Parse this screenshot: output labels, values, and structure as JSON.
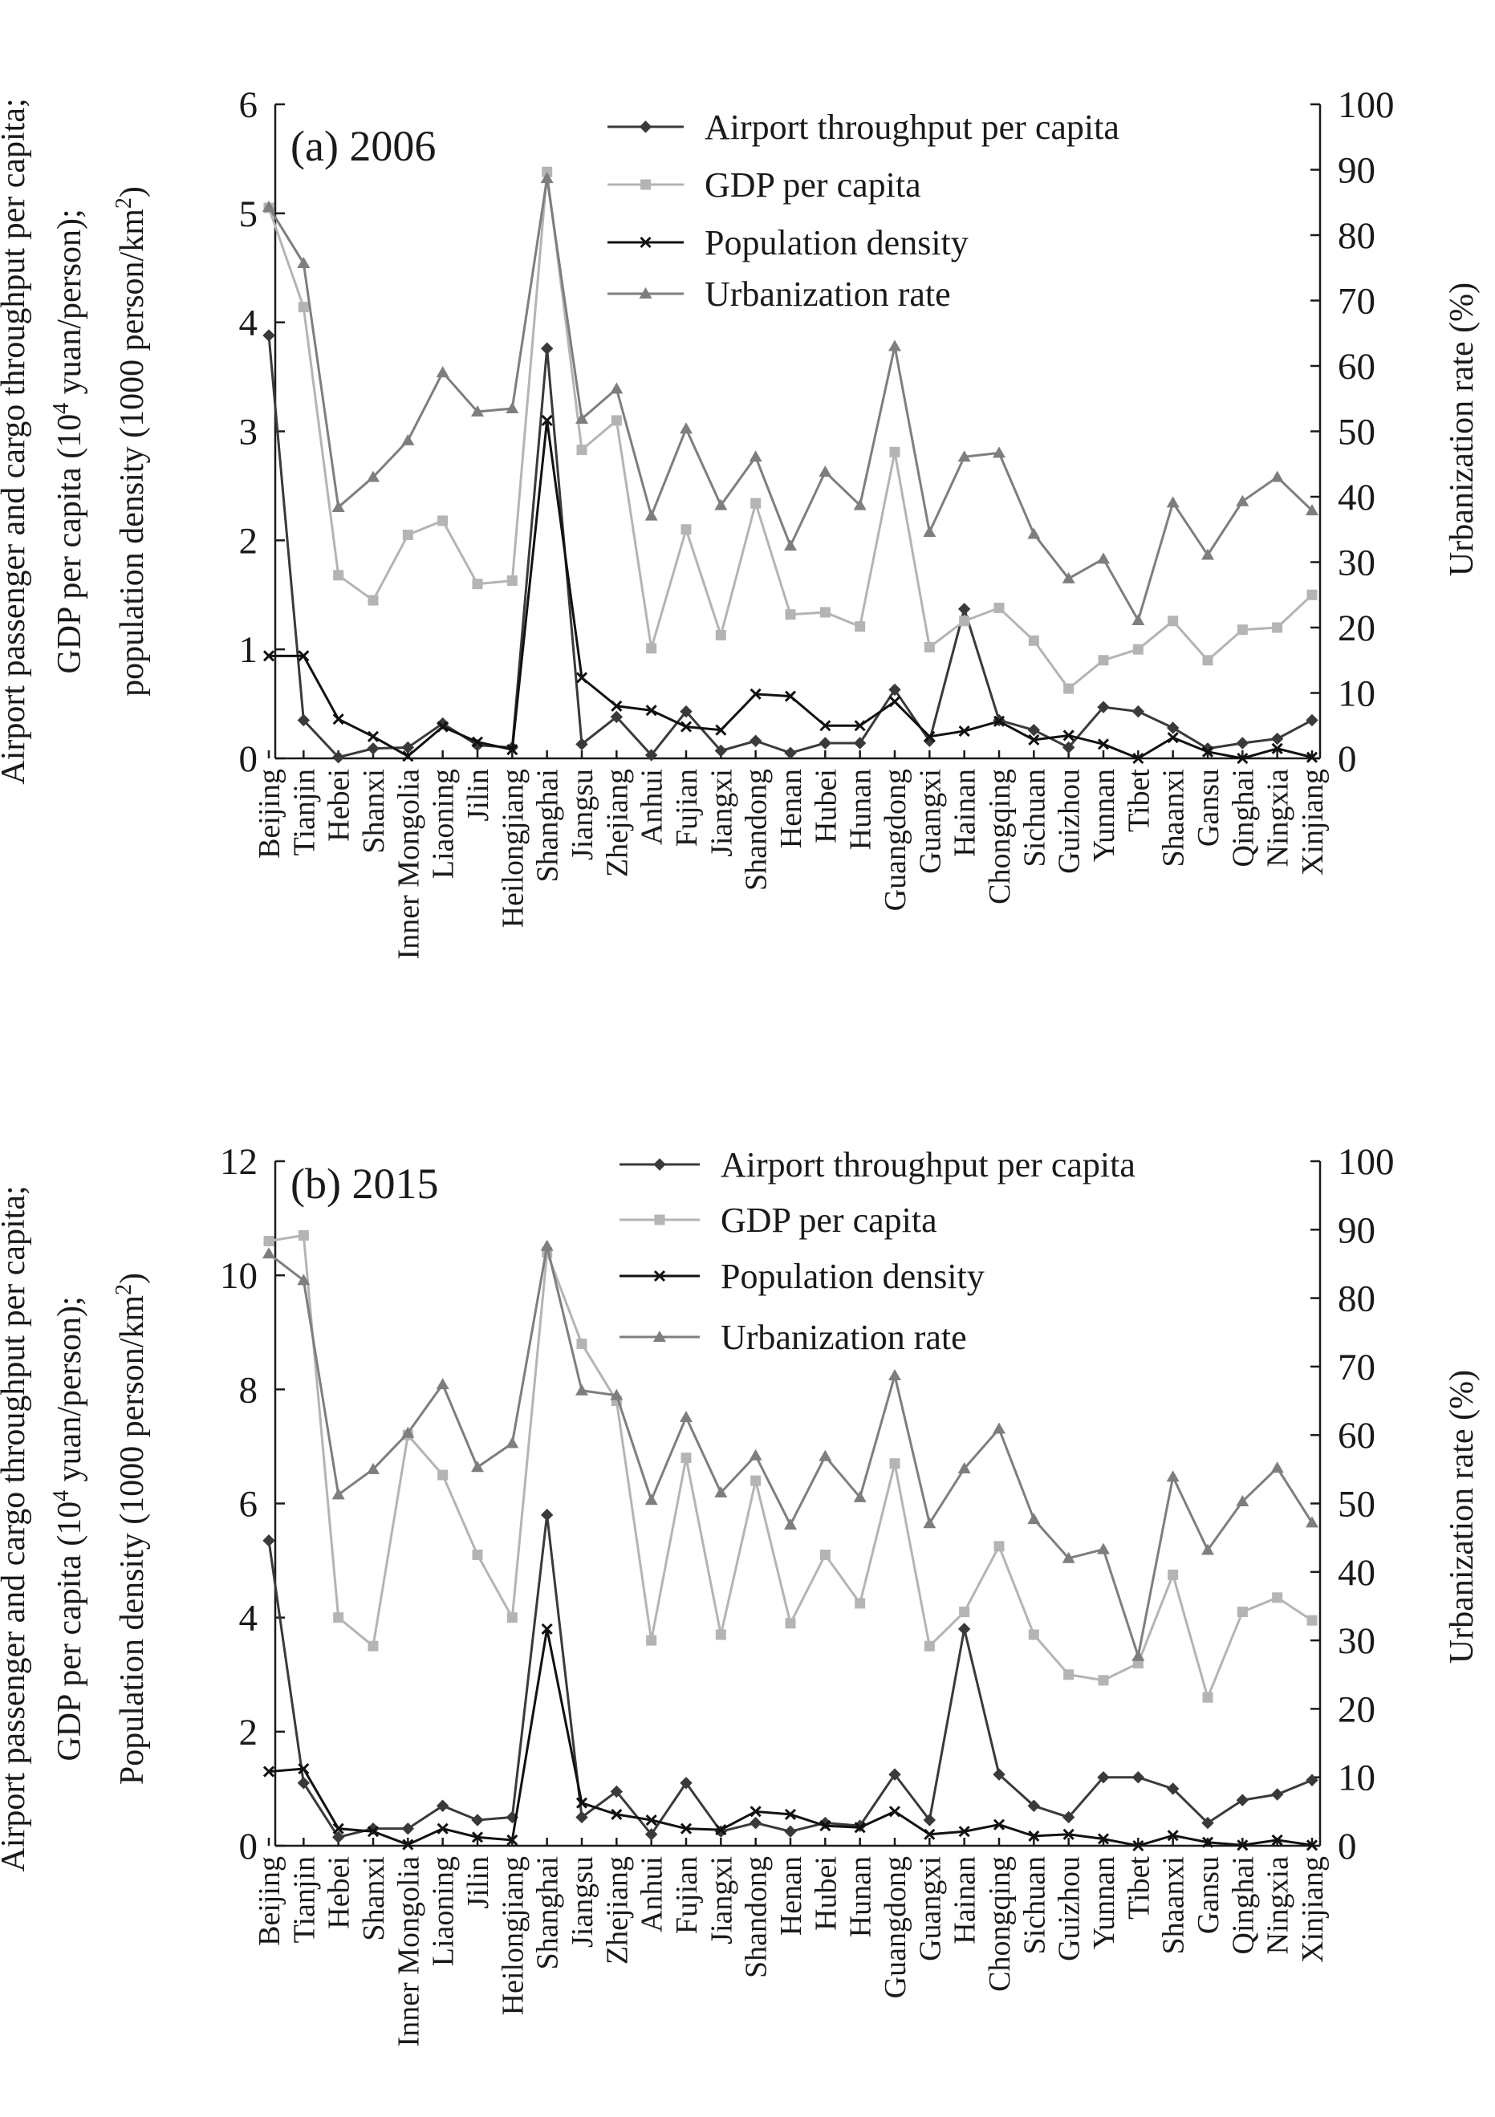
{
  "chart_data": [
    {
      "type": "line",
      "title": "(a) 2006",
      "categories": [
        "Beijing",
        "Tianjin",
        "Hebei",
        "Shanxi",
        "Inner Mongolia",
        "Liaoning",
        "Jilin",
        "Heilongjiang",
        "Shanghai",
        "Jiangsu",
        "Zhejiang",
        "Anhui",
        "Fujian",
        "Jiangxi",
        "Shandong",
        "Henan",
        "Hubei",
        "Hunan",
        "Guangdong",
        "Guangxi",
        "Hainan",
        "Chongqing",
        "Sichuan",
        "Guizhou",
        "Yunnan",
        "Tibet",
        "Shaanxi",
        "Gansu",
        "Qinghai",
        "Ningxia",
        "Xinjiang"
      ],
      "ylabel": [
        "Airport passenger and cargo throughput per capita;",
        "GDP per capita (10^4 yuan/person);",
        "population density (1000 person/km^2)"
      ],
      "y2label": "Urbanization rate (%)",
      "ylim": [
        0,
        6
      ],
      "y2lim": [
        0,
        100
      ],
      "yticks": [
        "0",
        "1",
        "2",
        "3",
        "4",
        "5",
        "6"
      ],
      "y2ticks": [
        "0",
        "10",
        "20",
        "30",
        "40",
        "50",
        "60",
        "70",
        "80",
        "90",
        "100"
      ],
      "legend_position": "top-center",
      "series": [
        {
          "name": "Airport throughput per capita",
          "axis": "left",
          "color": "#3a3a3a",
          "marker": "diamond",
          "values": [
            3.88,
            0.35,
            0.01,
            0.09,
            0.1,
            0.32,
            0.12,
            0.1,
            3.76,
            0.13,
            0.38,
            0.03,
            0.43,
            0.07,
            0.16,
            0.05,
            0.14,
            0.14,
            0.63,
            0.16,
            1.37,
            0.35,
            0.26,
            0.1,
            0.47,
            0.43,
            0.28,
            0.09,
            0.14,
            0.18,
            0.35
          ]
        },
        {
          "name": "GDP per capita",
          "axis": "left",
          "color": "#b4b4b4",
          "marker": "square",
          "values": [
            5.05,
            4.14,
            1.68,
            1.45,
            2.05,
            2.18,
            1.6,
            1.63,
            5.38,
            2.83,
            3.1,
            1.01,
            2.1,
            1.13,
            2.34,
            1.32,
            1.34,
            1.21,
            2.81,
            1.02,
            1.26,
            1.38,
            1.08,
            0.64,
            0.9,
            1.0,
            1.26,
            0.9,
            1.18,
            1.2,
            1.5
          ]
        },
        {
          "name": "Population density",
          "axis": "left",
          "color": "#111111",
          "marker": "x",
          "values": [
            0.94,
            0.94,
            0.36,
            0.2,
            0.02,
            0.29,
            0.15,
            0.08,
            3.1,
            0.74,
            0.48,
            0.44,
            0.29,
            0.26,
            0.59,
            0.57,
            0.3,
            0.3,
            0.52,
            0.2,
            0.25,
            0.34,
            0.17,
            0.21,
            0.13,
            0.0,
            0.19,
            0.06,
            0.0,
            0.09,
            0.01
          ]
        },
        {
          "name": "Urbanization rate",
          "axis": "right",
          "color": "#7e7e7e",
          "marker": "triangle",
          "values": [
            84.3,
            75.7,
            38.4,
            43.0,
            48.6,
            59.0,
            53.0,
            53.5,
            88.7,
            51.9,
            56.5,
            37.1,
            50.4,
            38.7,
            46.1,
            32.5,
            43.8,
            38.7,
            63.0,
            34.6,
            46.1,
            46.7,
            34.3,
            27.5,
            30.5,
            21.1,
            39.1,
            31.1,
            39.3,
            43.0,
            37.9
          ]
        }
      ]
    },
    {
      "type": "line",
      "title": "(b) 2015",
      "categories": [
        "Beijing",
        "Tianjin",
        "Hebei",
        "Shanxi",
        "Inner Mongolia",
        "Liaoning",
        "Jilin",
        "Heilongjiang",
        "Shanghai",
        "Jiangsu",
        "Zhejiang",
        "Anhui",
        "Fujian",
        "Jiangxi",
        "Shandong",
        "Henan",
        "Hubei",
        "Hunan",
        "Guangdong",
        "Guangxi",
        "Hainan",
        "Chongqing",
        "Sichuan",
        "Guizhou",
        "Yunnan",
        "Tibet",
        "Shaanxi",
        "Gansu",
        "Qinghai",
        "Ningxia",
        "Xinjiang"
      ],
      "ylabel": [
        "Airport passenger and cargo throughput per capita;",
        "GDP per capita (10^4 yuan/person);",
        "Population density (1000 person/km^2)"
      ],
      "y2label": "Urbanization rate (%)",
      "ylim": [
        0,
        12
      ],
      "y2lim": [
        0,
        100
      ],
      "yticks": [
        "0",
        "2",
        "4",
        "6",
        "8",
        "10",
        "12"
      ],
      "y2ticks": [
        "0",
        "10",
        "20",
        "30",
        "40",
        "50",
        "60",
        "70",
        "80",
        "90",
        "100"
      ],
      "legend_position": "top-center",
      "series": [
        {
          "name": "Airport throughput per capita",
          "axis": "left",
          "color": "#3a3a3a",
          "marker": "diamond",
          "values": [
            5.35,
            1.1,
            0.15,
            0.3,
            0.3,
            0.7,
            0.45,
            0.5,
            5.8,
            0.5,
            0.95,
            0.2,
            1.1,
            0.25,
            0.4,
            0.25,
            0.4,
            0.35,
            1.25,
            0.45,
            3.8,
            1.25,
            0.7,
            0.5,
            1.2,
            1.2,
            1.0,
            0.4,
            0.8,
            0.9,
            1.15
          ]
        },
        {
          "name": "GDP per capita",
          "axis": "left",
          "color": "#b4b4b4",
          "marker": "square",
          "values": [
            10.6,
            10.7,
            4.0,
            3.5,
            7.2,
            6.5,
            5.1,
            4.0,
            10.4,
            8.8,
            7.8,
            3.6,
            6.8,
            3.7,
            6.4,
            3.9,
            5.1,
            4.25,
            6.7,
            3.5,
            4.1,
            5.25,
            3.7,
            3.0,
            2.9,
            3.2,
            4.75,
            2.6,
            4.1,
            4.35,
            3.95
          ]
        },
        {
          "name": "Population density",
          "axis": "left",
          "color": "#111111",
          "marker": "x",
          "values": [
            1.3,
            1.35,
            0.3,
            0.25,
            0.02,
            0.3,
            0.15,
            0.1,
            3.8,
            0.75,
            0.55,
            0.45,
            0.3,
            0.28,
            0.6,
            0.55,
            0.35,
            0.32,
            0.6,
            0.2,
            0.25,
            0.37,
            0.17,
            0.2,
            0.12,
            0.0,
            0.18,
            0.06,
            0.01,
            0.1,
            0.01
          ]
        },
        {
          "name": "Urbanization rate",
          "axis": "right",
          "color": "#7e7e7e",
          "marker": "triangle",
          "values": [
            86.5,
            82.6,
            51.3,
            55.0,
            60.3,
            67.4,
            55.3,
            58.8,
            87.6,
            66.5,
            65.8,
            50.5,
            62.6,
            51.6,
            57.0,
            46.9,
            56.9,
            50.9,
            68.7,
            47.1,
            55.1,
            60.9,
            47.7,
            42.0,
            43.3,
            27.7,
            53.9,
            43.2,
            50.3,
            55.2,
            47.2
          ]
        }
      ]
    }
  ]
}
